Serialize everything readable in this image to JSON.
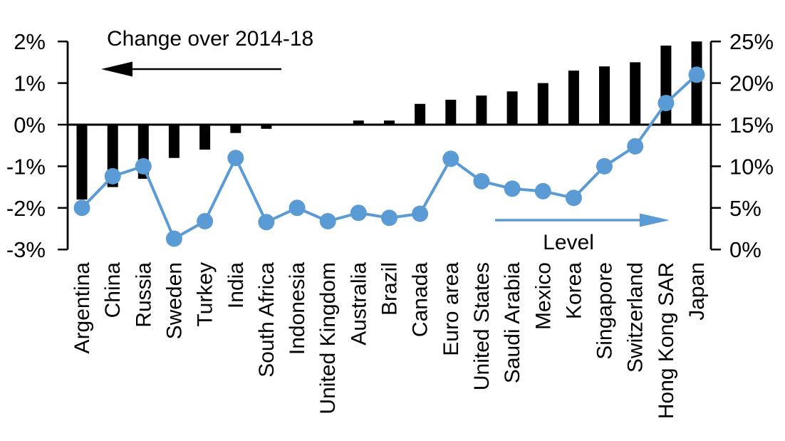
{
  "chart_data": {
    "type": "combo-bar-line-dual-axis",
    "title": "Change over 2014-18",
    "categories": [
      "Argentina",
      "China",
      "Russia",
      "Sweden",
      "Turkey",
      "India",
      "South Africa",
      "Indonesia",
      "United Kingdom",
      "Australia",
      "Brazil",
      "Canada",
      "Euro area",
      "United States",
      "Saudi Arabia",
      "Mexico",
      "Korea",
      "Singapore",
      "Switzerland",
      "Hong Kong SAR",
      "Japan"
    ],
    "series": [
      {
        "name": "Change over 2014-18",
        "type": "bar",
        "axis": "left",
        "color": "#000000",
        "values": [
          -1.8,
          -1.5,
          -1.3,
          -0.8,
          -0.6,
          -0.2,
          -0.1,
          0,
          0,
          0.1,
          0.1,
          0.5,
          0.6,
          0.7,
          0.8,
          1.0,
          1.3,
          1.4,
          1.5,
          1.9,
          2.0
        ]
      },
      {
        "name": "Level",
        "type": "line",
        "axis": "right",
        "color": "#5b9bd5",
        "values": [
          5.0,
          8.8,
          10.0,
          1.3,
          3.4,
          11.0,
          3.3,
          5.0,
          3.4,
          4.4,
          3.8,
          4.3,
          10.9,
          8.2,
          7.3,
          7.0,
          6.2,
          10.0,
          12.4,
          17.6,
          21.0
        ]
      }
    ],
    "left_axis": {
      "tick_labels": [
        "2%",
        "1%",
        "0%",
        "-1%",
        "-2%",
        "-3%"
      ],
      "tick_values": [
        2,
        1,
        0,
        -1,
        -2,
        -3
      ],
      "min": -3,
      "max": 2
    },
    "right_axis": {
      "tick_labels": [
        "25%",
        "20%",
        "15%",
        "10%",
        "5%",
        "0%"
      ],
      "tick_values": [
        25,
        20,
        15,
        10,
        5,
        0
      ],
      "min": 0,
      "max": 25
    },
    "annotations": [
      {
        "text": "Change over 2014-18",
        "arrow_direction": "left",
        "color": "#000000"
      },
      {
        "text": "Level",
        "arrow_direction": "right",
        "color": "#5b9bd5"
      }
    ],
    "gridlines": false,
    "zero_baseline": true,
    "background": "#ffffff"
  }
}
